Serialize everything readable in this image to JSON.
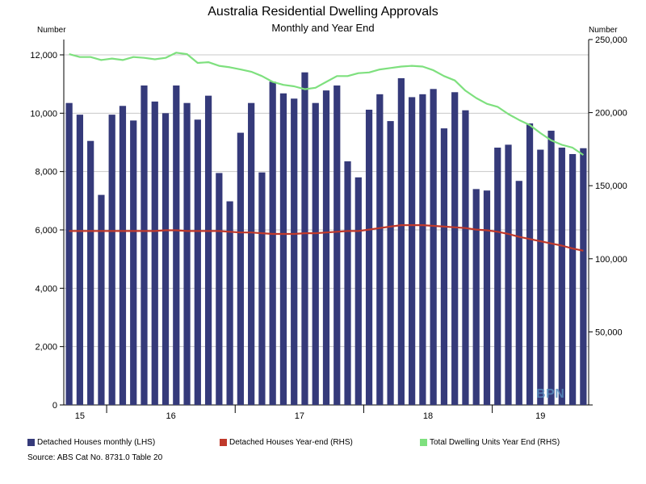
{
  "chart_data": {
    "type": "bar",
    "title": "Australia Residential Dwelling Approvals",
    "subtitle": "Monthly and Year End",
    "y_left_unit": "Number",
    "y_right_unit": "Number",
    "y_left_range": [
      0,
      12000
    ],
    "y_right_range": [
      0,
      250000
    ],
    "y_left_ticks": [
      0,
      2000,
      4000,
      6000,
      8000,
      10000,
      12000
    ],
    "y_right_ticks": [
      50000,
      100000,
      150000,
      200000,
      250000
    ],
    "x_year_labels": [
      "15",
      "16",
      "17",
      "18",
      "19"
    ],
    "grid": "horizontal",
    "legend_placement": "bottom",
    "months": 49,
    "series": [
      {
        "name": "Detached Houses monthly (LHS)",
        "kind": "bar",
        "axis": "left",
        "color": "#353a7a",
        "values": [
          10350,
          9950,
          9050,
          7200,
          9950,
          10250,
          9750,
          10950,
          10400,
          10000,
          10950,
          10350,
          9780,
          10600,
          7950,
          6980,
          9330,
          10350,
          7970,
          11080,
          10680,
          10500,
          11400,
          10350,
          10780,
          10950,
          8350,
          7800,
          10120,
          10650,
          9730,
          11200,
          10550,
          10650,
          10830,
          9480,
          10720,
          10100,
          7400,
          7350,
          8820,
          8920,
          7680,
          9650,
          8750,
          9400,
          8820,
          8600,
          8800
        ]
      },
      {
        "name": "Detached Houses Year-end (RHS)",
        "kind": "line",
        "axis": "right",
        "color": "#c0392b",
        "values": [
          119000,
          119000,
          119000,
          119000,
          119000,
          119000,
          119000,
          119000,
          119000,
          119500,
          119500,
          119000,
          119000,
          119000,
          119000,
          118500,
          118000,
          118000,
          117500,
          117000,
          117000,
          117000,
          117500,
          117500,
          118000,
          118500,
          119000,
          119000,
          120000,
          121000,
          122000,
          123000,
          123000,
          123000,
          122500,
          122000,
          121500,
          121000,
          120000,
          119500,
          118500,
          117000,
          115000,
          113500,
          112000,
          110500,
          109000,
          107000,
          105500
        ]
      },
      {
        "name": "Total Dwelling Units Year End (RHS)",
        "kind": "line",
        "axis": "right",
        "color": "#7ee07e",
        "values": [
          240000,
          238000,
          238000,
          236000,
          237000,
          236000,
          238000,
          237500,
          236500,
          237500,
          241000,
          240000,
          234000,
          234500,
          232000,
          231000,
          229500,
          228000,
          225000,
          221000,
          219000,
          218000,
          216000,
          217000,
          221000,
          225000,
          225000,
          227000,
          227500,
          229500,
          230500,
          231500,
          232000,
          231500,
          229000,
          225000,
          222000,
          215000,
          210000,
          206000,
          204000,
          199000,
          195000,
          191500,
          186000,
          181000,
          178000,
          176000,
          171000
        ]
      }
    ]
  },
  "source": "Source: ABS Cat No. 8731.0 Table 20",
  "watermark": "BPN"
}
